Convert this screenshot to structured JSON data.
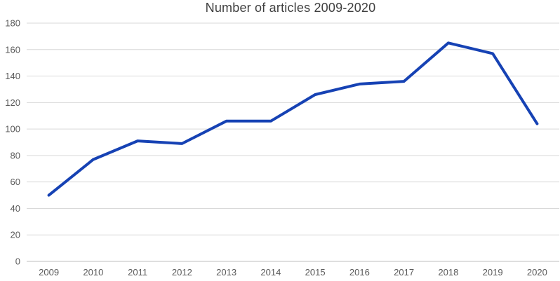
{
  "chart_data": {
    "type": "line",
    "title": "Number of articles 2009-2020",
    "categories": [
      "2009",
      "2010",
      "2011",
      "2012",
      "2013",
      "2014",
      "2015",
      "2016",
      "2017",
      "2018",
      "2019",
      "2020"
    ],
    "values": [
      50,
      77,
      91,
      89,
      106,
      106,
      126,
      134,
      136,
      165,
      157,
      104
    ],
    "xlabel": "",
    "ylabel": "",
    "ylim": [
      0,
      180
    ],
    "yticks": [
      0,
      20,
      40,
      60,
      80,
      100,
      120,
      140,
      160,
      180
    ],
    "grid": "horizontal",
    "legend": "none",
    "line_color": "#1642B4",
    "gridline_color": "#D9D9D9",
    "axis_line_color": "#BFBFBF",
    "title_color": "#3F3F3F",
    "tick_label_color": "#595959",
    "background_color": "#FFFFFF"
  }
}
